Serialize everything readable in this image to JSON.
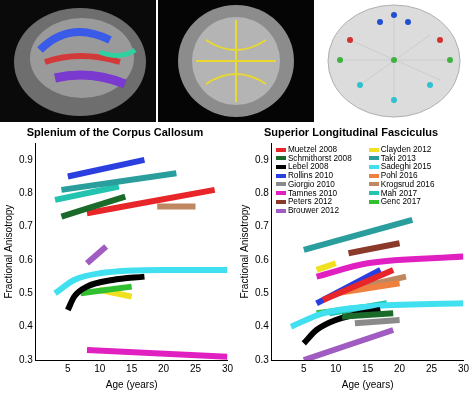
{
  "chart_data": [
    {
      "type": "line",
      "title": "Splenium of the Corpus Callosum",
      "x_label": "Age (years)",
      "y_label": "Fractional Anisotropy",
      "xlim": [
        0,
        30
      ],
      "xticks": [
        5,
        10,
        15,
        20,
        25,
        30
      ],
      "ylim": [
        0.3,
        0.95
      ],
      "yticks": [
        0.3,
        0.4,
        0.5,
        0.6,
        0.7,
        0.8,
        0.9
      ],
      "grid": false,
      "series": [
        {
          "name": "Rollins 2010",
          "color": "#2b3fe0",
          "x": [
            5,
            17
          ],
          "values": [
            0.85,
            0.9
          ]
        },
        {
          "name": "Taki 2013",
          "color": "#2a9d9d",
          "x": [
            4,
            22
          ],
          "values": [
            0.81,
            0.86
          ]
        },
        {
          "name": "Mah 2017",
          "color": "#22c4b0",
          "x": [
            3,
            13
          ],
          "values": [
            0.78,
            0.82
          ]
        },
        {
          "name": "Schmithorst 2008",
          "color": "#1a6b2a",
          "x": [
            4,
            14
          ],
          "values": [
            0.73,
            0.79
          ]
        },
        {
          "name": "Muetzel 2008",
          "color": "#e8262a",
          "x": [
            8,
            28
          ],
          "values": [
            0.74,
            0.81
          ]
        },
        {
          "name": "Krogsrud 2016",
          "color": "#c08860",
          "x": [
            19,
            25
          ],
          "values": [
            0.76,
            0.76
          ]
        },
        {
          "name": "Brouwer 2012",
          "color": "#a05cc0",
          "x": [
            8,
            11
          ],
          "values": [
            0.59,
            0.64
          ]
        },
        {
          "name": "Sadeghi 2015",
          "color": "#40e0f0",
          "x": [
            3,
            6,
            10,
            20,
            30
          ],
          "values": [
            0.5,
            0.54,
            0.56,
            0.57,
            0.57
          ]
        },
        {
          "name": "Lebel 2008",
          "color": "#000000",
          "x": [
            5,
            6,
            8,
            12,
            17
          ],
          "values": [
            0.45,
            0.49,
            0.52,
            0.54,
            0.55
          ]
        },
        {
          "name": "Genc 2017",
          "color": "#30c030",
          "x": [
            7,
            15
          ],
          "values": [
            0.5,
            0.52
          ]
        },
        {
          "name": "Clayden 2012",
          "color": "#f0e020",
          "x": [
            10,
            15
          ],
          "values": [
            0.51,
            0.49
          ]
        },
        {
          "name": "Tamnes 2010",
          "color": "#e020c0",
          "x": [
            8,
            30
          ],
          "values": [
            0.33,
            0.31
          ]
        }
      ]
    },
    {
      "type": "line",
      "title": "Superior Longitudinal Fasciculus",
      "x_label": "Age (years)",
      "y_label": "Fractional Anisotropy",
      "xlim": [
        0,
        30
      ],
      "xticks": [
        5,
        10,
        15,
        20,
        25,
        30
      ],
      "ylim": [
        0.3,
        0.95
      ],
      "yticks": [
        0.3,
        0.4,
        0.5,
        0.6,
        0.7,
        0.8,
        0.9
      ],
      "grid": false,
      "legend": "top",
      "series": [
        {
          "name": "Muetzel 2008",
          "color": "#e8262a",
          "x": [
            8,
            19
          ],
          "values": [
            0.48,
            0.57
          ]
        },
        {
          "name": "Schmithorst 2008",
          "color": "#1a6b2a",
          "x": [
            11,
            19
          ],
          "values": [
            0.43,
            0.44
          ]
        },
        {
          "name": "Lebel 2008",
          "color": "#000000",
          "x": [
            5,
            7,
            10,
            17
          ],
          "values": [
            0.35,
            0.39,
            0.42,
            0.45
          ]
        },
        {
          "name": "Rollins 2010",
          "color": "#2b3fe0",
          "x": [
            7,
            17
          ],
          "values": [
            0.47,
            0.57
          ]
        },
        {
          "name": "Giorgio 2010",
          "color": "#8a8a8a",
          "x": [
            13,
            20
          ],
          "values": [
            0.41,
            0.42
          ]
        },
        {
          "name": "Tamnes 2010",
          "color": "#e020c0",
          "x": [
            7,
            15,
            30
          ],
          "values": [
            0.55,
            0.59,
            0.61
          ]
        },
        {
          "name": "Peters 2012",
          "color": "#8b3a2a",
          "x": [
            12,
            20
          ],
          "values": [
            0.62,
            0.65
          ]
        },
        {
          "name": "Brouwer 2012",
          "color": "#a05cc0",
          "x": [
            5,
            19
          ],
          "values": [
            0.3,
            0.39
          ]
        },
        {
          "name": "Clayden 2012",
          "color": "#f0e020",
          "x": [
            7,
            10
          ],
          "values": [
            0.57,
            0.59
          ]
        },
        {
          "name": "Taki 2013",
          "color": "#2a9d9d",
          "x": [
            5,
            22
          ],
          "values": [
            0.63,
            0.72
          ]
        },
        {
          "name": "Sadeghi 2015",
          "color": "#40e0f0",
          "x": [
            3,
            8,
            15,
            30
          ],
          "values": [
            0.4,
            0.44,
            0.46,
            0.47
          ]
        },
        {
          "name": "Pohl 2016",
          "color": "#f08040",
          "x": [
            10,
            20
          ],
          "values": [
            0.5,
            0.53
          ]
        },
        {
          "name": "Krogsrud 2016",
          "color": "#c08860",
          "x": [
            14,
            21
          ],
          "values": [
            0.52,
            0.55
          ]
        },
        {
          "name": "Mah 2017",
          "color": "#22c4b0",
          "x": [
            9,
            18
          ],
          "values": [
            0.44,
            0.47
          ]
        },
        {
          "name": "Genc 2017",
          "color": "#30c030",
          "x": [
            7,
            15
          ],
          "values": [
            0.44,
            0.46
          ]
        }
      ]
    }
  ]
}
